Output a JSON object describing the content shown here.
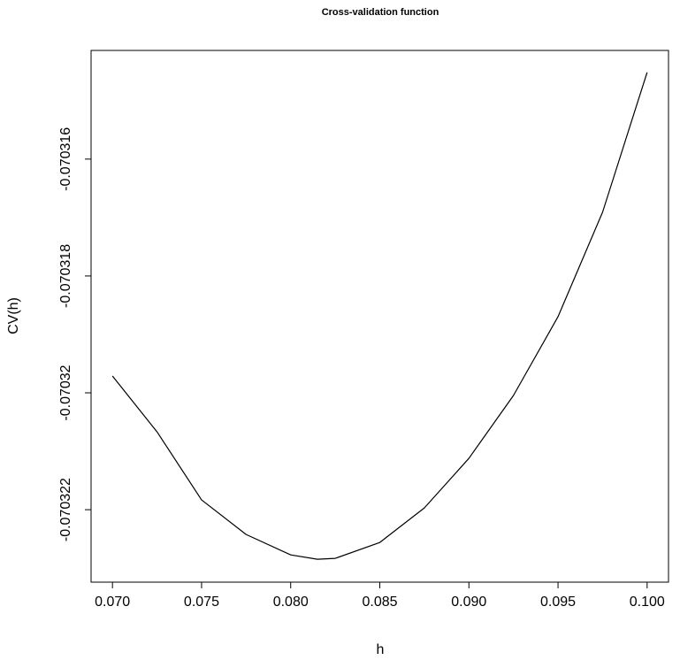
{
  "chart_data": {
    "type": "line",
    "title": "Cross-validation function",
    "x_label": "h",
    "y_label": "CV(h)",
    "x": [
      0.07,
      0.0725,
      0.075,
      0.0775,
      0.08,
      0.0815,
      0.0825,
      0.085,
      0.0875,
      0.09,
      0.0925,
      0.095,
      0.0975,
      0.1
    ],
    "values": [
      -0.0703197121,
      -0.070320667,
      -0.070321833,
      -0.070322424,
      -0.070322773,
      -0.070322848,
      -0.070322833,
      -0.070322561,
      -0.07032197,
      -0.070321121,
      -0.070320045,
      -0.070318697,
      -0.070316909,
      -0.070314515
    ],
    "color": "#000000",
    "xlim": [
      0.0688,
      0.1012
    ],
    "ylim": [
      -0.07032324,
      -0.07031414
    ],
    "xticks": [
      {
        "value": 0.07,
        "label": "0.070"
      },
      {
        "value": 0.075,
        "label": "0.075"
      },
      {
        "value": 0.08,
        "label": "0.080"
      },
      {
        "value": 0.085,
        "label": "0.085"
      },
      {
        "value": 0.09,
        "label": "0.090"
      },
      {
        "value": 0.095,
        "label": "0.095"
      },
      {
        "value": 0.1,
        "label": "0.100"
      }
    ],
    "yticks": [
      -0.070316,
      -0.070318,
      -0.07032,
      -0.070322
    ]
  }
}
